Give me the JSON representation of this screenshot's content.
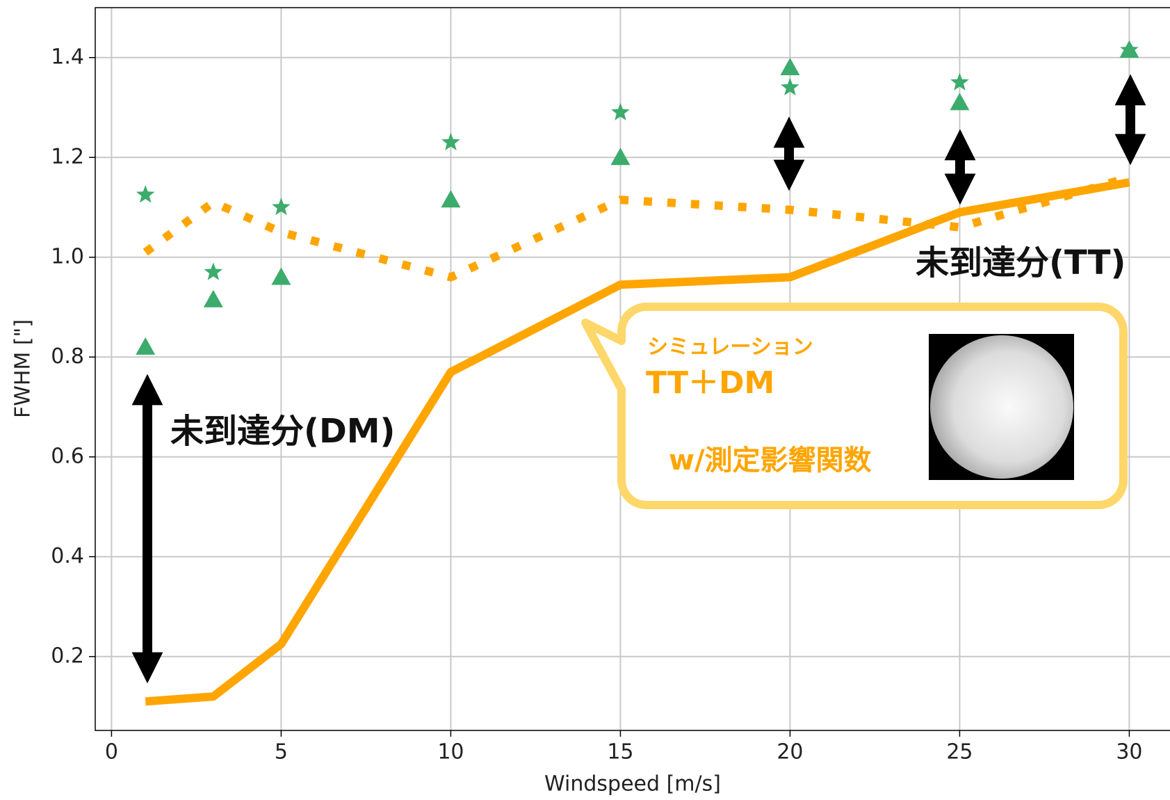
{
  "chart_data": {
    "type": "line",
    "x": [
      1,
      3,
      5,
      10,
      15,
      20,
      25,
      30
    ],
    "series": [
      {
        "color": "#ffa500",
        "style": "solid",
        "marker": "none",
        "values": [
          0.11,
          0.12,
          0.225,
          0.77,
          0.945,
          0.96,
          1.09,
          1.15
        ]
      },
      {
        "color": "#ffa500",
        "style": "dotted",
        "marker": "none",
        "values": [
          1.01,
          1.11,
          1.05,
          0.96,
          1.115,
          1.095,
          1.06,
          1.16
        ]
      },
      {
        "color": "#3cab6c",
        "style": "none",
        "marker": "star",
        "values": [
          1.125,
          0.97,
          1.1,
          1.23,
          1.29,
          1.34,
          1.35,
          1.415
        ]
      },
      {
        "color": "#3cab6c",
        "style": "none",
        "marker": "triangle",
        "values": [
          0.82,
          0.915,
          0.96,
          1.115,
          1.2,
          1.38,
          1.31,
          1.415
        ]
      }
    ],
    "xlabel": "Windspeed [m/s]",
    "ylabel": "FWHM [\"]",
    "xlim": [
      -0.48,
      31.2
    ],
    "ylim": [
      0.052,
      1.5
    ],
    "xticks": [
      0,
      5,
      10,
      15,
      20,
      25,
      30
    ],
    "yticks": [
      0.2,
      0.4,
      0.6,
      0.8,
      {
        "value": 1,
        "label": "1.0"
      },
      1.2,
      1.4
    ],
    "grid": true,
    "annotations": [
      "未到達分(DM)",
      "未到達分(TT)",
      "シミュレーション",
      "TT＋DM",
      "w/測定影響関数"
    ]
  }
}
